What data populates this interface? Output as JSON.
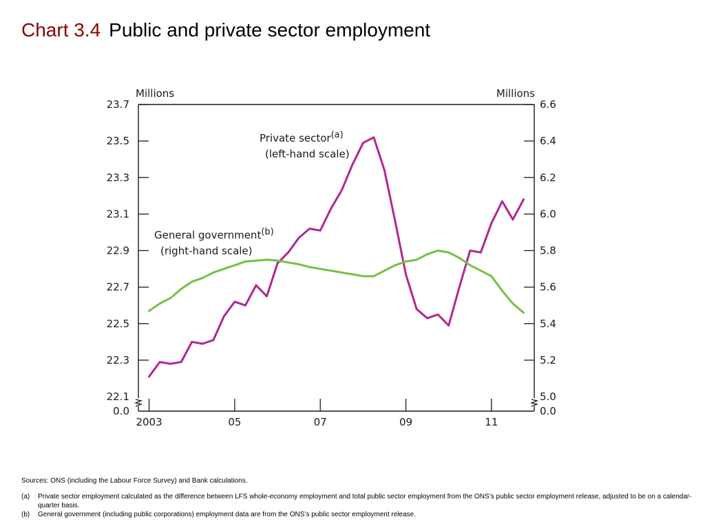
{
  "header": {
    "chart_number": "Chart 3.4",
    "chart_title": "Public and private sector employment"
  },
  "chart_data": {
    "type": "line",
    "title": "Public and private sector employment",
    "left_axis": {
      "unit_label": "Millions",
      "ylim": [
        22.1,
        23.7
      ],
      "ticks": [
        22.1,
        22.3,
        22.5,
        22.7,
        22.9,
        23.1,
        23.3,
        23.5,
        23.7
      ],
      "tick_labels": [
        "22.1",
        "22.3",
        "22.5",
        "22.7",
        "22.9",
        "23.1",
        "23.3",
        "23.5",
        "23.7"
      ],
      "break_label": "0.0"
    },
    "right_axis": {
      "unit_label": "Millions",
      "ylim": [
        5.0,
        6.6
      ],
      "ticks": [
        5.0,
        5.2,
        5.4,
        5.6,
        5.8,
        6.0,
        6.2,
        6.4,
        6.6
      ],
      "tick_labels": [
        "5.0",
        "5.2",
        "5.4",
        "5.6",
        "5.8",
        "6.0",
        "6.2",
        "6.4",
        "6.6"
      ],
      "break_label": "0.0"
    },
    "x_axis": {
      "xlim": [
        2002.75,
        2012.0
      ],
      "tick_positions": [
        2003,
        2005,
        2007,
        2009,
        2011
      ],
      "tick_labels": [
        "2003",
        "05",
        "07",
        "09",
        "11"
      ]
    },
    "grid": false,
    "series": [
      {
        "axis": "left",
        "color": "#b0278f",
        "annotation_text": "Private sector",
        "annotation_sup": "(a)",
        "annotation_scale": "(left-hand scale)",
        "x": [
          2003.0,
          2003.25,
          2003.5,
          2003.75,
          2004.0,
          2004.25,
          2004.5,
          2004.75,
          2005.0,
          2005.25,
          2005.5,
          2005.75,
          2006.0,
          2006.25,
          2006.5,
          2006.75,
          2007.0,
          2007.25,
          2007.5,
          2007.75,
          2008.0,
          2008.25,
          2008.5,
          2008.75,
          2009.0,
          2009.25,
          2009.5,
          2009.75,
          2010.0,
          2010.25,
          2010.5,
          2010.75,
          2011.0,
          2011.25,
          2011.5,
          2011.75
        ],
        "values": [
          22.21,
          22.29,
          22.28,
          22.29,
          22.4,
          22.39,
          22.41,
          22.54,
          22.62,
          22.6,
          22.71,
          22.65,
          22.83,
          22.89,
          22.97,
          23.02,
          23.01,
          23.13,
          23.23,
          23.37,
          23.49,
          23.52,
          23.34,
          23.06,
          22.77,
          22.58,
          22.53,
          22.55,
          22.49,
          22.7,
          22.9,
          22.89,
          23.05,
          23.17,
          23.07,
          23.18
        ]
      },
      {
        "axis": "right",
        "color": "#76c043",
        "annotation_text": "General government",
        "annotation_sup": "(b)",
        "annotation_scale": "(right-hand scale)",
        "x": [
          2003.0,
          2003.25,
          2003.5,
          2003.75,
          2004.0,
          2004.25,
          2004.5,
          2004.75,
          2005.0,
          2005.25,
          2005.5,
          2005.75,
          2006.0,
          2006.25,
          2006.5,
          2006.75,
          2007.0,
          2007.25,
          2007.5,
          2007.75,
          2008.0,
          2008.25,
          2008.5,
          2008.75,
          2009.0,
          2009.25,
          2009.5,
          2009.75,
          2010.0,
          2010.25,
          2010.5,
          2010.75,
          2011.0,
          2011.25,
          2011.5,
          2011.75
        ],
        "values": [
          5.47,
          5.51,
          5.54,
          5.59,
          5.63,
          5.65,
          5.68,
          5.7,
          5.72,
          5.74,
          5.745,
          5.75,
          5.745,
          5.735,
          5.725,
          5.71,
          5.7,
          5.69,
          5.68,
          5.67,
          5.66,
          5.66,
          5.69,
          5.72,
          5.74,
          5.75,
          5.78,
          5.8,
          5.79,
          5.76,
          5.72,
          5.69,
          5.66,
          5.58,
          5.51,
          5.46
        ]
      }
    ]
  },
  "notes": {
    "sources": "Sources:  ONS (including the Labour Force Survey) and Bank calculations.",
    "footnotes": [
      {
        "mark": "(a)",
        "text": "Private sector employment calculated as the difference between LFS whole-economy employment and total public sector employment from the ONS’s public sector employment release, adjusted to be on a calendar-quarter basis."
      },
      {
        "mark": "(b)",
        "text": "General government (including public corporations) employment data are from the ONS’s public sector employment release."
      }
    ]
  }
}
